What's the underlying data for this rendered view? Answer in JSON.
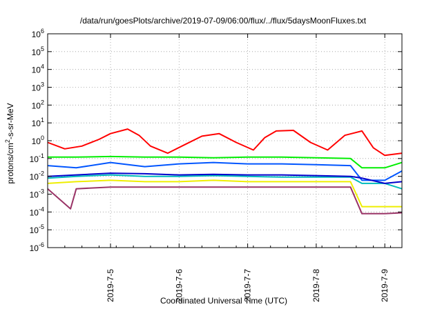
{
  "chart_data": {
    "type": "line",
    "title": "/data/run/goesPlots/archive/2019-07-09/06:00/flux/../flux/5daysMoonFluxes.txt",
    "xlabel": "Coordinated Universal Time (UTC)",
    "ylabel_parts": [
      "protons/cm",
      "2",
      "-s-sr-MeV"
    ],
    "y_scale": "log",
    "ylim": [
      1e-06,
      1000000.0
    ],
    "y_ticks": [
      {
        "base": "10",
        "exp": "-6",
        "value": 1e-06
      },
      {
        "base": "10",
        "exp": "-5",
        "value": 1e-05
      },
      {
        "base": "10",
        "exp": "-4",
        "value": 0.0001
      },
      {
        "base": "10",
        "exp": "-3",
        "value": 0.001
      },
      {
        "base": "10",
        "exp": "-2",
        "value": 0.01
      },
      {
        "base": "10",
        "exp": "-1",
        "value": 0.1
      },
      {
        "base": "10",
        "exp": "0",
        "value": 1
      },
      {
        "base": "10",
        "exp": "1",
        "value": 10
      },
      {
        "base": "10",
        "exp": "2",
        "value": 100
      },
      {
        "base": "10",
        "exp": "3",
        "value": 1000
      },
      {
        "base": "10",
        "exp": "4",
        "value": 10000
      },
      {
        "base": "10",
        "exp": "5",
        "value": 100000
      },
      {
        "base": "10",
        "exp": "6",
        "value": 1000000
      }
    ],
    "xlim": [
      "2019-07-04 02:00",
      "2019-07-09 06:00"
    ],
    "x_ticks": [
      "2019-7-5",
      "2019-7-6",
      "2019-7-7",
      "2019-7-8",
      "2019-7-9"
    ],
    "grid": true,
    "series": [
      {
        "color": "#ff0000",
        "x": [
          "2019-07-04 02:00",
          "2019-07-04 08:00",
          "2019-07-04 14:00",
          "2019-07-04 20:00",
          "2019-07-05 00:00",
          "2019-07-05 06:00",
          "2019-07-05 10:00",
          "2019-07-05 14:00",
          "2019-07-05 20:00",
          "2019-07-06 02:00",
          "2019-07-06 08:00",
          "2019-07-06 14:00",
          "2019-07-06 20:00",
          "2019-07-07 02:00",
          "2019-07-07 06:00",
          "2019-07-07 10:00",
          "2019-07-07 16:00",
          "2019-07-07 22:00",
          "2019-07-08 04:00",
          "2019-07-08 10:00",
          "2019-07-08 16:00",
          "2019-07-08 20:00",
          "2019-07-09 00:00",
          "2019-07-09 06:00"
        ],
        "y": [
          0.8,
          0.35,
          0.5,
          1.2,
          2.5,
          4.5,
          2.0,
          0.5,
          0.2,
          0.6,
          1.8,
          2.5,
          0.8,
          0.3,
          1.5,
          3.5,
          3.8,
          0.8,
          0.3,
          2.0,
          3.5,
          0.4,
          0.15,
          0.2
        ]
      },
      {
        "color": "#00ee00",
        "x": [
          "2019-07-04 02:00",
          "2019-07-04 12:00",
          "2019-07-05 00:00",
          "2019-07-05 12:00",
          "2019-07-06 00:00",
          "2019-07-06 12:00",
          "2019-07-07 00:00",
          "2019-07-07 12:00",
          "2019-07-08 00:00",
          "2019-07-08 12:00",
          "2019-07-08 16:00",
          "2019-07-09 00:00",
          "2019-07-09 06:00"
        ],
        "y": [
          0.12,
          0.12,
          0.13,
          0.12,
          0.12,
          0.11,
          0.12,
          0.12,
          0.11,
          0.1,
          0.03,
          0.03,
          0.06
        ]
      },
      {
        "color": "#0055ff",
        "x": [
          "2019-07-04 02:00",
          "2019-07-04 12:00",
          "2019-07-05 00:00",
          "2019-07-05 12:00",
          "2019-07-06 00:00",
          "2019-07-06 12:00",
          "2019-07-07 00:00",
          "2019-07-07 12:00",
          "2019-07-08 00:00",
          "2019-07-08 12:00",
          "2019-07-08 16:00",
          "2019-07-09 00:00",
          "2019-07-09 06:00"
        ],
        "y": [
          0.04,
          0.03,
          0.06,
          0.035,
          0.05,
          0.06,
          0.05,
          0.05,
          0.045,
          0.04,
          0.006,
          0.006,
          0.02
        ]
      },
      {
        "color": "#00bbbb",
        "x": [
          "2019-07-04 02:00",
          "2019-07-04 12:00",
          "2019-07-05 00:00",
          "2019-07-05 12:00",
          "2019-07-06 00:00",
          "2019-07-06 12:00",
          "2019-07-07 00:00",
          "2019-07-07 12:00",
          "2019-07-08 00:00",
          "2019-07-08 12:00",
          "2019-07-08 16:00",
          "2019-07-09 00:00",
          "2019-07-09 06:00"
        ],
        "y": [
          0.008,
          0.01,
          0.012,
          0.01,
          0.01,
          0.011,
          0.01,
          0.009,
          0.009,
          0.009,
          0.004,
          0.004,
          0.002
        ]
      },
      {
        "color": "#0000cc",
        "x": [
          "2019-07-04 02:00",
          "2019-07-04 12:00",
          "2019-07-05 00:00",
          "2019-07-05 12:00",
          "2019-07-06 00:00",
          "2019-07-06 12:00",
          "2019-07-07 00:00",
          "2019-07-07 12:00",
          "2019-07-08 00:00",
          "2019-07-08 12:00",
          "2019-07-08 16:00",
          "2019-07-09 00:00",
          "2019-07-09 06:00"
        ],
        "y": [
          0.01,
          0.012,
          0.015,
          0.014,
          0.012,
          0.013,
          0.012,
          0.012,
          0.011,
          0.01,
          0.008,
          0.004,
          0.005
        ]
      },
      {
        "color": "#eeee00",
        "x": [
          "2019-07-04 02:00",
          "2019-07-04 12:00",
          "2019-07-05 00:00",
          "2019-07-05 12:00",
          "2019-07-06 00:00",
          "2019-07-06 12:00",
          "2019-07-07 00:00",
          "2019-07-07 12:00",
          "2019-07-08 00:00",
          "2019-07-08 12:00",
          "2019-07-08 16:00",
          "2019-07-09 00:00",
          "2019-07-09 06:00"
        ],
        "y": [
          0.004,
          0.005,
          0.006,
          0.005,
          0.005,
          0.006,
          0.005,
          0.005,
          0.005,
          0.005,
          0.0002,
          0.0002,
          0.0002
        ]
      },
      {
        "color": "#993366",
        "x": [
          "2019-07-04 02:00",
          "2019-07-04 10:00",
          "2019-07-04 12:00",
          "2019-07-05 00:00",
          "2019-07-05 12:00",
          "2019-07-06 00:00",
          "2019-07-06 12:00",
          "2019-07-07 00:00",
          "2019-07-07 12:00",
          "2019-07-08 00:00",
          "2019-07-08 12:00",
          "2019-07-08 16:00",
          "2019-07-09 00:00",
          "2019-07-09 06:00"
        ],
        "y": [
          0.002,
          0.00015,
          0.002,
          0.0025,
          0.0025,
          0.0025,
          0.0025,
          0.0025,
          0.0025,
          0.0025,
          0.0025,
          8e-05,
          8e-05,
          9e-05
        ]
      }
    ]
  }
}
